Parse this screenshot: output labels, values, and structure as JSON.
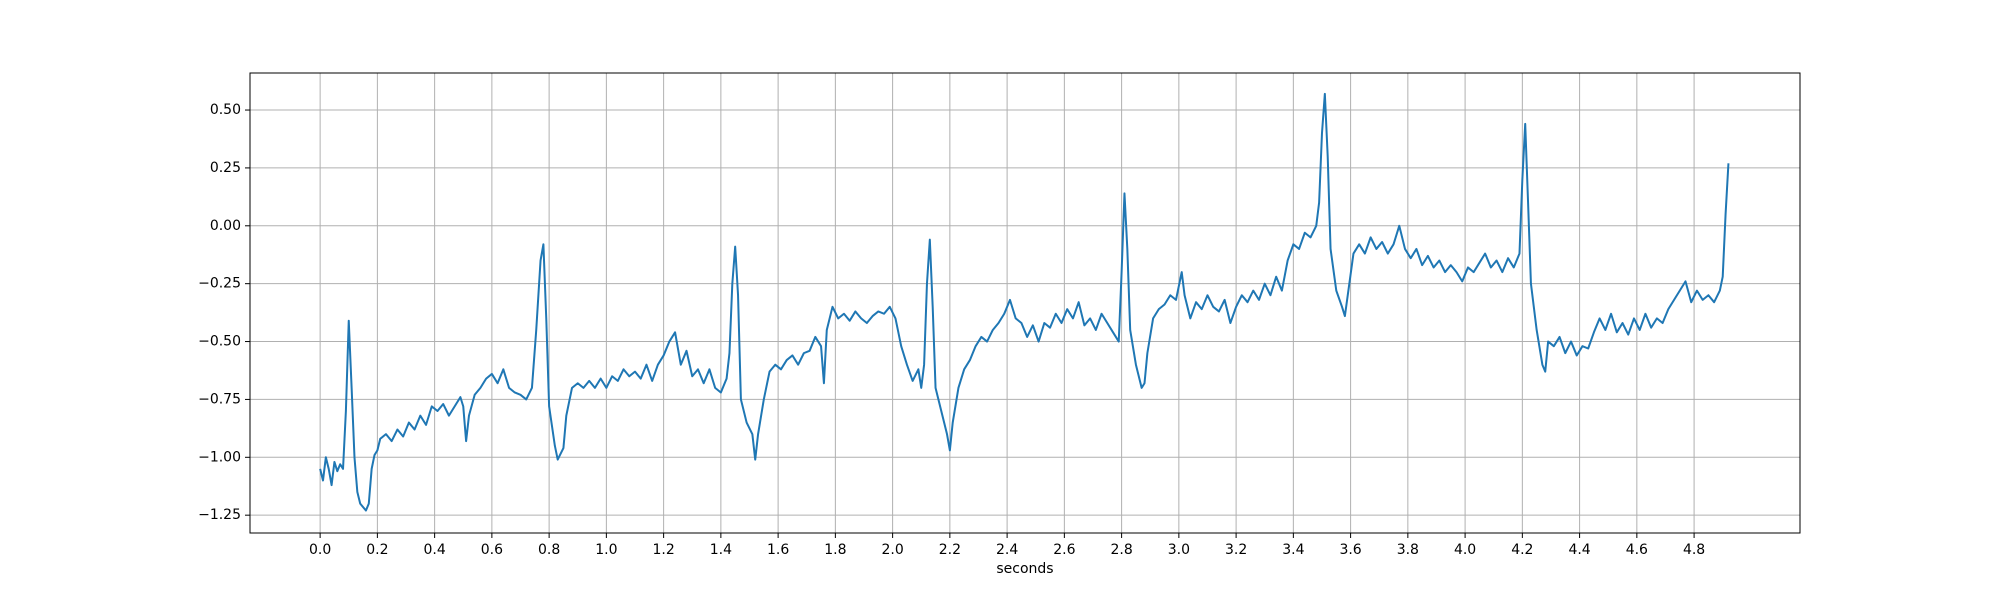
{
  "chart_data": {
    "type": "line",
    "xlabel": "seconds",
    "color": "#1f77b4",
    "grid": true,
    "xlim": [
      -0.245,
      5.17
    ],
    "ylim": [
      -1.327,
      0.66
    ],
    "xticks": [
      {
        "value": 0,
        "label": "0.0"
      },
      {
        "value": 0.2,
        "label": "0.2"
      },
      {
        "value": 0.4,
        "label": "0.4"
      },
      {
        "value": 0.6,
        "label": "0.6"
      },
      {
        "value": 0.8,
        "label": "0.8"
      },
      {
        "value": 1,
        "label": "1.0"
      },
      {
        "value": 1.2,
        "label": "1.2"
      },
      {
        "value": 1.4,
        "label": "1.4"
      },
      {
        "value": 1.6,
        "label": "1.6"
      },
      {
        "value": 1.8,
        "label": "1.8"
      },
      {
        "value": 2,
        "label": "2.0"
      },
      {
        "value": 2.2,
        "label": "2.2"
      },
      {
        "value": 2.4,
        "label": "2.4"
      },
      {
        "value": 2.6,
        "label": "2.6"
      },
      {
        "value": 2.8,
        "label": "2.8"
      },
      {
        "value": 3,
        "label": "3.0"
      },
      {
        "value": 3.2,
        "label": "3.2"
      },
      {
        "value": 3.4,
        "label": "3.4"
      },
      {
        "value": 3.6,
        "label": "3.6"
      },
      {
        "value": 3.8,
        "label": "3.8"
      },
      {
        "value": 4,
        "label": "4.0"
      },
      {
        "value": 4.2,
        "label": "4.2"
      },
      {
        "value": 4.4,
        "label": "4.4"
      },
      {
        "value": 4.6,
        "label": "4.6"
      },
      {
        "value": 4.8,
        "label": "4.8"
      }
    ],
    "yticks": [
      {
        "value": -1.25,
        "label": "−1.25"
      },
      {
        "value": -1,
        "label": "−1.00"
      },
      {
        "value": -0.75,
        "label": "−0.75"
      },
      {
        "value": -0.5,
        "label": "−0.50"
      },
      {
        "value": -0.25,
        "label": "−0.25"
      },
      {
        "value": 0,
        "label": "0.00"
      },
      {
        "value": 0.25,
        "label": "0.25"
      },
      {
        "value": 0.5,
        "label": "0.50"
      }
    ],
    "x": [
      0,
      0.01,
      0.02,
      0.03,
      0.04,
      0.05,
      0.06,
      0.07,
      0.08,
      0.09,
      0.1,
      0.11,
      0.12,
      0.13,
      0.14,
      0.16,
      0.17,
      0.18,
      0.19,
      0.2,
      0.21,
      0.23,
      0.25,
      0.27,
      0.29,
      0.31,
      0.33,
      0.35,
      0.37,
      0.39,
      0.41,
      0.43,
      0.45,
      0.47,
      0.49,
      0.5,
      0.51,
      0.52,
      0.54,
      0.56,
      0.58,
      0.6,
      0.62,
      0.64,
      0.66,
      0.68,
      0.7,
      0.72,
      0.74,
      0.755,
      0.77,
      0.78,
      0.79,
      0.8,
      0.82,
      0.83,
      0.85,
      0.86,
      0.88,
      0.9,
      0.92,
      0.94,
      0.96,
      0.98,
      1,
      1.02,
      1.04,
      1.06,
      1.08,
      1.1,
      1.12,
      1.14,
      1.16,
      1.18,
      1.2,
      1.22,
      1.24,
      1.26,
      1.28,
      1.3,
      1.32,
      1.34,
      1.36,
      1.38,
      1.4,
      1.42,
      1.43,
      1.44,
      1.45,
      1.46,
      1.47,
      1.49,
      1.51,
      1.52,
      1.53,
      1.55,
      1.57,
      1.59,
      1.61,
      1.63,
      1.65,
      1.67,
      1.69,
      1.71,
      1.73,
      1.75,
      1.76,
      1.77,
      1.79,
      1.81,
      1.83,
      1.85,
      1.87,
      1.89,
      1.91,
      1.93,
      1.95,
      1.97,
      1.99,
      2.01,
      2.03,
      2.05,
      2.07,
      2.09,
      2.1,
      2.11,
      2.12,
      2.13,
      2.14,
      2.15,
      2.17,
      2.19,
      2.2,
      2.21,
      2.23,
      2.25,
      2.27,
      2.29,
      2.31,
      2.33,
      2.35,
      2.37,
      2.39,
      2.41,
      2.43,
      2.45,
      2.47,
      2.49,
      2.51,
      2.53,
      2.55,
      2.57,
      2.59,
      2.61,
      2.63,
      2.65,
      2.67,
      2.69,
      2.71,
      2.73,
      2.75,
      2.77,
      2.79,
      2.8,
      2.81,
      2.82,
      2.83,
      2.85,
      2.87,
      2.88,
      2.89,
      2.91,
      2.93,
      2.95,
      2.97,
      2.99,
      3.01,
      3.02,
      3.04,
      3.06,
      3.08,
      3.1,
      3.12,
      3.14,
      3.16,
      3.18,
      3.2,
      3.22,
      3.24,
      3.26,
      3.28,
      3.3,
      3.32,
      3.34,
      3.36,
      3.38,
      3.4,
      3.42,
      3.44,
      3.46,
      3.48,
      3.49,
      3.5,
      3.51,
      3.52,
      3.53,
      3.55,
      3.57,
      3.58,
      3.59,
      3.61,
      3.63,
      3.65,
      3.67,
      3.69,
      3.71,
      3.73,
      3.75,
      3.77,
      3.79,
      3.81,
      3.83,
      3.85,
      3.87,
      3.89,
      3.91,
      3.93,
      3.95,
      3.97,
      3.99,
      4.01,
      4.03,
      4.05,
      4.07,
      4.09,
      4.11,
      4.13,
      4.15,
      4.17,
      4.19,
      4.2,
      4.21,
      4.22,
      4.23,
      4.25,
      4.27,
      4.28,
      4.29,
      4.31,
      4.33,
      4.35,
      4.37,
      4.39,
      4.41,
      4.43,
      4.45,
      4.47,
      4.49,
      4.51,
      4.53,
      4.55,
      4.57,
      4.59,
      4.61,
      4.63,
      4.65,
      4.67,
      4.69,
      4.71,
      4.73,
      4.75,
      4.77,
      4.79,
      4.81,
      4.83,
      4.85,
      4.87,
      4.89,
      4.9,
      4.91,
      4.92
    ],
    "values": [
      -1.05,
      -1.1,
      -1,
      -1.05,
      -1.12,
      -1.02,
      -1.06,
      -1.03,
      -1.05,
      -0.8,
      -0.41,
      -0.7,
      -1,
      -1.15,
      -1.2,
      -1.23,
      -1.2,
      -1.05,
      -0.99,
      -0.97,
      -0.92,
      -0.9,
      -0.93,
      -0.88,
      -0.91,
      -0.85,
      -0.88,
      -0.82,
      -0.86,
      -0.78,
      -0.8,
      -0.77,
      -0.82,
      -0.78,
      -0.74,
      -0.78,
      -0.93,
      -0.82,
      -0.73,
      -0.7,
      -0.66,
      -0.64,
      -0.68,
      -0.62,
      -0.7,
      -0.72,
      -0.73,
      -0.75,
      -0.7,
      -0.45,
      -0.15,
      -0.08,
      -0.4,
      -0.78,
      -0.95,
      -1.01,
      -0.96,
      -0.82,
      -0.7,
      -0.68,
      -0.7,
      -0.67,
      -0.7,
      -0.66,
      -0.7,
      -0.65,
      -0.67,
      -0.62,
      -0.65,
      -0.63,
      -0.66,
      -0.6,
      -0.67,
      -0.6,
      -0.56,
      -0.5,
      -0.46,
      -0.6,
      -0.54,
      -0.65,
      -0.62,
      -0.68,
      -0.62,
      -0.7,
      -0.72,
      -0.66,
      -0.55,
      -0.25,
      -0.09,
      -0.3,
      -0.75,
      -0.85,
      -0.9,
      -1.01,
      -0.9,
      -0.75,
      -0.63,
      -0.6,
      -0.62,
      -0.58,
      -0.56,
      -0.6,
      -0.55,
      -0.54,
      -0.48,
      -0.52,
      -0.68,
      -0.45,
      -0.35,
      -0.4,
      -0.38,
      -0.41,
      -0.37,
      -0.4,
      -0.42,
      -0.39,
      -0.37,
      -0.38,
      -0.35,
      -0.4,
      -0.52,
      -0.6,
      -0.67,
      -0.62,
      -0.7,
      -0.6,
      -0.25,
      -0.06,
      -0.35,
      -0.7,
      -0.8,
      -0.9,
      -0.97,
      -0.85,
      -0.7,
      -0.62,
      -0.58,
      -0.52,
      -0.48,
      -0.5,
      -0.45,
      -0.42,
      -0.38,
      -0.32,
      -0.4,
      -0.42,
      -0.48,
      -0.43,
      -0.5,
      -0.42,
      -0.44,
      -0.38,
      -0.42,
      -0.36,
      -0.4,
      -0.33,
      -0.43,
      -0.4,
      -0.45,
      -0.38,
      -0.42,
      -0.46,
      -0.5,
      -0.2,
      0.14,
      -0.1,
      -0.45,
      -0.6,
      -0.7,
      -0.68,
      -0.55,
      -0.4,
      -0.36,
      -0.34,
      -0.3,
      -0.32,
      -0.2,
      -0.3,
      -0.4,
      -0.33,
      -0.36,
      -0.3,
      -0.35,
      -0.37,
      -0.32,
      -0.42,
      -0.35,
      -0.3,
      -0.33,
      -0.28,
      -0.32,
      -0.25,
      -0.3,
      -0.22,
      -0.28,
      -0.15,
      -0.08,
      -0.1,
      -0.03,
      -0.05,
      0,
      0.1,
      0.4,
      0.57,
      0.3,
      -0.1,
      -0.28,
      -0.35,
      -0.39,
      -0.3,
      -0.12,
      -0.08,
      -0.12,
      -0.05,
      -0.1,
      -0.07,
      -0.12,
      -0.08,
      0,
      -0.1,
      -0.14,
      -0.1,
      -0.17,
      -0.13,
      -0.18,
      -0.15,
      -0.2,
      -0.17,
      -0.2,
      -0.24,
      -0.18,
      -0.2,
      -0.16,
      -0.12,
      -0.18,
      -0.15,
      -0.2,
      -0.14,
      -0.18,
      -0.12,
      0.2,
      0.44,
      0.1,
      -0.25,
      -0.45,
      -0.6,
      -0.63,
      -0.5,
      -0.52,
      -0.48,
      -0.55,
      -0.5,
      -0.56,
      -0.52,
      -0.53,
      -0.46,
      -0.4,
      -0.45,
      -0.38,
      -0.46,
      -0.42,
      -0.47,
      -0.4,
      -0.45,
      -0.38,
      -0.44,
      -0.4,
      -0.42,
      -0.36,
      -0.32,
      -0.28,
      -0.24,
      -0.33,
      -0.28,
      -0.32,
      -0.3,
      -0.33,
      -0.28,
      -0.22,
      0.05,
      0.27
    ]
  }
}
